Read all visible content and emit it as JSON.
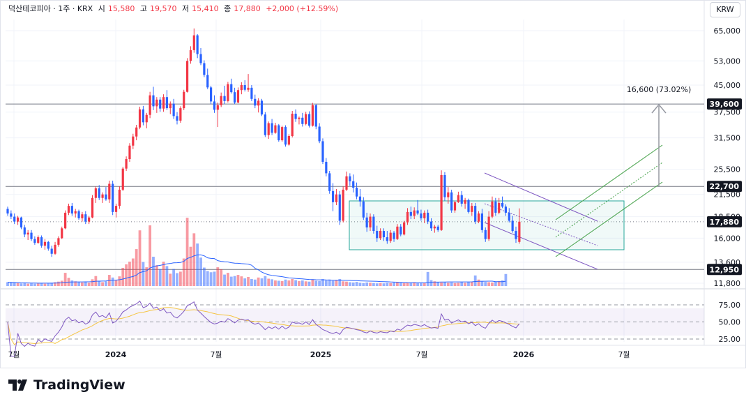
{
  "legend": {
    "symbol": "덕산테코피아 · 1주 · KRX",
    "open_label": "시",
    "open": "15,580",
    "high_label": "고",
    "high": "19,570",
    "low_label": "저",
    "low": "15,410",
    "close_label": "종",
    "close": "17,880",
    "change": "+2,000 (+12.59%)"
  },
  "currency_button": "KRW",
  "brand": "TradingView",
  "colors": {
    "up": "#f23645",
    "down": "#2962ff",
    "rsi": "#7e57c2",
    "rsi_ma": "#f5c542",
    "volume_ma": "#2962ff",
    "box": "#26a69a",
    "channel_up": "#43a047",
    "channel_down": "#7e57c2"
  },
  "chart_data": {
    "type": "candlestick",
    "price_scale": {
      "type": "log",
      "ticks": [
        "65,000",
        "53,000",
        "45,000",
        "37,500",
        "31,500",
        "25,500",
        "21,500",
        "18,500",
        "16,000",
        "13,600",
        "11,800"
      ]
    },
    "price_labels": [
      {
        "value": "39,600",
        "bg": "#131722"
      },
      {
        "value": "22,700",
        "bg": "#131722"
      },
      {
        "value": "17,880",
        "bg": "#131722"
      },
      {
        "value": "12,950",
        "bg": "#131722"
      }
    ],
    "measure_label": "16,600 (73.02%)",
    "x_ticks": [
      "7월",
      "2024",
      "7월",
      "2025",
      "7월",
      "2026",
      "7월"
    ],
    "rsi_ticks": [
      "75.00",
      "50.00",
      "25.00"
    ],
    "candles": [
      [
        19500,
        19800,
        18600,
        18900
      ],
      [
        18900,
        19300,
        18200,
        18500
      ],
      [
        18500,
        18900,
        17600,
        17900
      ],
      [
        17900,
        18600,
        17500,
        18400
      ],
      [
        18400,
        18500,
        17000,
        17200
      ],
      [
        17200,
        17500,
        16100,
        16400
      ],
      [
        16400,
        16900,
        15800,
        16600
      ],
      [
        16600,
        16900,
        15700,
        15900
      ],
      [
        15900,
        16200,
        15300,
        15500
      ],
      [
        15500,
        16300,
        15400,
        16100
      ],
      [
        16100,
        16300,
        15000,
        15200
      ],
      [
        15200,
        15900,
        14800,
        15600
      ],
      [
        15600,
        15700,
        14700,
        14900
      ],
      [
        14900,
        15200,
        14100,
        14400
      ],
      [
        14400,
        15600,
        14300,
        15300
      ],
      [
        15300,
        16200,
        15100,
        16000
      ],
      [
        16000,
        17300,
        15900,
        17100
      ],
      [
        17100,
        19300,
        17000,
        19000
      ],
      [
        19000,
        20200,
        18700,
        19900
      ],
      [
        19900,
        20300,
        18600,
        18900
      ],
      [
        18900,
        19500,
        18400,
        19200
      ],
      [
        19200,
        19400,
        18100,
        18300
      ],
      [
        18300,
        19100,
        17900,
        18800
      ],
      [
        18800,
        19200,
        17600,
        17900
      ],
      [
        17900,
        18600,
        17600,
        18400
      ],
      [
        18400,
        21400,
        18300,
        21000
      ],
      [
        21000,
        22700,
        20300,
        22400
      ],
      [
        22400,
        22900,
        20700,
        21000
      ],
      [
        21000,
        21800,
        20300,
        21500
      ],
      [
        21500,
        22600,
        20600,
        20800
      ],
      [
        20800,
        23600,
        20300,
        23100
      ],
      [
        23100,
        23600,
        18700,
        19100
      ],
      [
        19100,
        20200,
        18400,
        19900
      ],
      [
        19900,
        22700,
        19500,
        22200
      ],
      [
        22200,
        25900,
        22000,
        25600
      ],
      [
        25600,
        27800,
        25200,
        27300
      ],
      [
        27300,
        30400,
        26800,
        29900
      ],
      [
        29900,
        32400,
        29200,
        31800
      ],
      [
        31800,
        34400,
        31000,
        33800
      ],
      [
        33800,
        38900,
        33400,
        38200
      ],
      [
        38200,
        39100,
        34300,
        35000
      ],
      [
        35000,
        37300,
        33600,
        36800
      ],
      [
        36800,
        43000,
        36000,
        42000
      ],
      [
        42000,
        44500,
        38000,
        39000
      ],
      [
        39000,
        41500,
        37300,
        40800
      ],
      [
        40800,
        41500,
        37600,
        38400
      ],
      [
        38400,
        42300,
        37600,
        41500
      ],
      [
        41500,
        43500,
        38000,
        38500
      ],
      [
        38500,
        40300,
        37000,
        39700
      ],
      [
        39700,
        41000,
        35800,
        36500
      ],
      [
        36500,
        37500,
        34500,
        35400
      ],
      [
        35400,
        39000,
        34900,
        38500
      ],
      [
        38500,
        43600,
        38000,
        43000
      ],
      [
        43000,
        54000,
        42800,
        53000
      ],
      [
        53000,
        58500,
        52000,
        57000
      ],
      [
        57000,
        66000,
        56000,
        63000
      ],
      [
        63000,
        63500,
        54000,
        55500
      ],
      [
        55500,
        57800,
        51500,
        52200
      ],
      [
        52200,
        53200,
        47500,
        48200
      ],
      [
        48200,
        50300,
        43800,
        44300
      ],
      [
        44300,
        44800,
        39600,
        40300
      ],
      [
        40300,
        42000,
        37300,
        38100
      ],
      [
        38100,
        40000,
        33900,
        39300
      ],
      [
        39300,
        42800,
        38800,
        41800
      ],
      [
        41800,
        44800,
        39600,
        40400
      ],
      [
        40400,
        46000,
        40000,
        45300
      ],
      [
        45300,
        47000,
        42500,
        42900
      ],
      [
        42900,
        44200,
        39600,
        40000
      ],
      [
        40000,
        44300,
        39800,
        43500
      ],
      [
        43500,
        45900,
        42300,
        45000
      ],
      [
        45000,
        46500,
        43100,
        43600
      ],
      [
        43600,
        48500,
        43000,
        44200
      ],
      [
        44200,
        45000,
        40400,
        41000
      ],
      [
        41000,
        42200,
        38500,
        39200
      ],
      [
        39200,
        41200,
        37400,
        40500
      ],
      [
        40500,
        41000,
        36500,
        36900
      ],
      [
        36900,
        37500,
        31700,
        32100
      ],
      [
        32100,
        35200,
        31300,
        34800
      ],
      [
        34800,
        35800,
        32100,
        32600
      ],
      [
        32600,
        34900,
        32400,
        34300
      ],
      [
        34300,
        34600,
        30700,
        31000
      ],
      [
        31000,
        34200,
        30700,
        33900
      ],
      [
        33900,
        34300,
        29700,
        30100
      ],
      [
        30100,
        32300,
        29900,
        31900
      ],
      [
        31900,
        37800,
        31600,
        37100
      ],
      [
        37100,
        38200,
        35100,
        35800
      ],
      [
        35800,
        36400,
        34500,
        36100
      ],
      [
        36100,
        37300,
        34000,
        34600
      ],
      [
        34600,
        37600,
        34300,
        37000
      ],
      [
        37000,
        37700,
        33800,
        34200
      ],
      [
        34200,
        39900,
        34000,
        39300
      ],
      [
        39300,
        39600,
        33400,
        34000
      ],
      [
        34000,
        34800,
        30400,
        30800
      ],
      [
        30800,
        31400,
        26400,
        26800
      ],
      [
        26800,
        27500,
        24300,
        24800
      ],
      [
        24800,
        25200,
        21600,
        22000
      ],
      [
        22000,
        23200,
        19200,
        20400
      ],
      [
        20400,
        22300,
        20000,
        21500
      ],
      [
        21500,
        22000,
        17500,
        18000
      ],
      [
        18000,
        22700,
        17800,
        22200
      ],
      [
        22200,
        25100,
        22000,
        24300
      ],
      [
        24300,
        24800,
        22800,
        23500
      ],
      [
        23500,
        24600,
        21800,
        22500
      ],
      [
        22500,
        23300,
        20800,
        21200
      ],
      [
        21200,
        22300,
        19800,
        20500
      ],
      [
        20500,
        21100,
        18100,
        18400
      ],
      [
        18400,
        19000,
        16700,
        17200
      ],
      [
        17200,
        18900,
        16800,
        18500
      ],
      [
        18500,
        18800,
        16500,
        16800
      ],
      [
        16800,
        17400,
        15600,
        16000
      ],
      [
        16000,
        17100,
        15800,
        16800
      ],
      [
        16800,
        17100,
        15700,
        16100
      ],
      [
        16100,
        16800,
        15400,
        15700
      ],
      [
        15700,
        16900,
        15500,
        16600
      ],
      [
        16600,
        16800,
        15600,
        15900
      ],
      [
        15900,
        17600,
        15800,
        17300
      ],
      [
        17300,
        17600,
        16200,
        16400
      ],
      [
        16400,
        18000,
        16300,
        17800
      ],
      [
        17800,
        19600,
        17500,
        19100
      ],
      [
        19100,
        19800,
        18200,
        18600
      ],
      [
        18600,
        19700,
        18200,
        19300
      ],
      [
        19300,
        20700,
        18700,
        18900
      ],
      [
        18900,
        19400,
        18000,
        18300
      ],
      [
        18300,
        19300,
        17700,
        19000
      ],
      [
        19000,
        19400,
        17600,
        17900
      ],
      [
        17900,
        18300,
        16800,
        17100
      ],
      [
        17100,
        17500,
        16600,
        17300
      ],
      [
        17300,
        17500,
        16700,
        16900
      ],
      [
        16900,
        25300,
        16800,
        24500
      ],
      [
        24500,
        25000,
        20600,
        21100
      ],
      [
        21100,
        22600,
        20200,
        21800
      ],
      [
        21800,
        22200,
        19000,
        19300
      ],
      [
        19300,
        20600,
        19000,
        20400
      ],
      [
        20400,
        21900,
        20300,
        21400
      ],
      [
        21400,
        22000,
        19800,
        20200
      ],
      [
        20200,
        21000,
        19500,
        20700
      ],
      [
        20700,
        20900,
        18900,
        19100
      ],
      [
        19100,
        20300,
        18600,
        19900
      ],
      [
        19900,
        20300,
        17600,
        17900
      ],
      [
        17900,
        19200,
        17700,
        18900
      ],
      [
        18900,
        19500,
        16600,
        16900
      ],
      [
        16900,
        17200,
        15600,
        15900
      ],
      [
        15900,
        19200,
        15700,
        18500
      ],
      [
        18500,
        21200,
        18300,
        20500
      ],
      [
        20500,
        21000,
        18600,
        19000
      ],
      [
        19000,
        21000,
        18800,
        20300
      ],
      [
        20300,
        21200,
        19600,
        19800
      ],
      [
        19800,
        20100,
        18600,
        19000
      ],
      [
        19000,
        19600,
        17800,
        18000
      ],
      [
        18000,
        18600,
        16600,
        16800
      ],
      [
        16800,
        17300,
        15500,
        15900
      ],
      [
        15600,
        19570,
        15410,
        17880
      ]
    ],
    "volume": [
      1.3,
      1.2,
      1.1,
      1.0,
      0.9,
      1.0,
      0.8,
      0.9,
      0.8,
      0.9,
      1.0,
      0.8,
      0.9,
      1.1,
      1.3,
      1.5,
      1.8,
      4.5,
      2.8,
      1.9,
      1.6,
      1.3,
      1.2,
      1.4,
      1.1,
      2.3,
      3.4,
      1.8,
      1.3,
      1.6,
      3.8,
      2.9,
      1.9,
      3.3,
      6.2,
      7.4,
      8.3,
      9.4,
      12.6,
      19.0,
      8.2,
      6.4,
      20.7,
      10.0,
      7.1,
      5.8,
      8.3,
      6.8,
      4.2,
      5.8,
      4.4,
      4.9,
      9.4,
      23.3,
      13.4,
      18.0,
      14.5,
      9.7,
      6.3,
      5.1,
      4.7,
      4.9,
      6.4,
      5.7,
      3.9,
      4.5,
      3.2,
      3.4,
      3.8,
      3.3,
      2.6,
      3.1,
      2.4,
      2.2,
      2.9,
      2.6,
      3.4,
      2.5,
      2.3,
      1.9,
      1.8,
      1.7,
      2.2,
      1.9,
      2.4,
      2.0,
      1.7,
      1.9,
      1.6,
      1.5,
      2.3,
      1.8,
      1.7,
      2.4,
      1.9,
      2.2,
      1.8,
      2.1,
      2.4,
      1.6,
      1.5,
      1.3,
      1.2,
      1.4,
      1.1,
      1.0,
      1.2,
      1.1,
      1.0,
      0.9,
      1.0,
      0.9,
      1.1,
      1.0,
      1.2,
      1.3,
      1.1,
      1.0,
      1.2,
      1.1,
      1.3,
      1.0,
      1.1,
      1.0,
      4.8,
      2.0,
      1.6,
      1.3,
      1.2,
      1.4,
      1.1,
      1.2,
      1.0,
      1.1,
      1.4,
      1.1,
      1.3,
      1.5,
      3.6,
      2.2,
      1.6,
      1.4,
      1.3,
      1.2,
      1.5,
      1.7,
      1.9,
      4.1
    ]
  }
}
